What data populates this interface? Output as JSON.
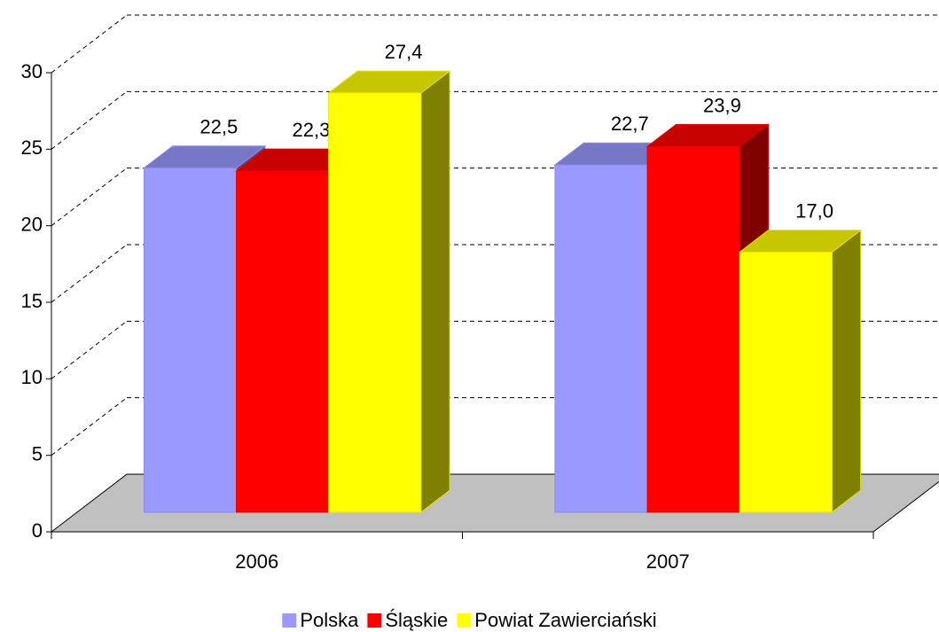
{
  "chart_data": {
    "type": "bar3d",
    "categories": [
      "2006",
      "2007"
    ],
    "series": [
      {
        "name": "Polska",
        "color": "#9999ff",
        "values": [
          22.5,
          22.7
        ],
        "value_labels": [
          "22,5",
          "22,7"
        ]
      },
      {
        "name": "Śląskie",
        "color": "#ff0000",
        "values": [
          22.3,
          23.9
        ],
        "value_labels": [
          "22,3",
          "23,9"
        ]
      },
      {
        "name": "Powiat Zawierciański",
        "color": "#ffff00",
        "values": [
          27.4,
          17.0
        ],
        "value_labels": [
          "27,4",
          "17,0"
        ]
      }
    ],
    "ylim": [
      0,
      30
    ],
    "yticks": [
      0,
      5,
      10,
      15,
      20,
      25,
      30
    ],
    "grid": true,
    "legend": "bottom"
  }
}
